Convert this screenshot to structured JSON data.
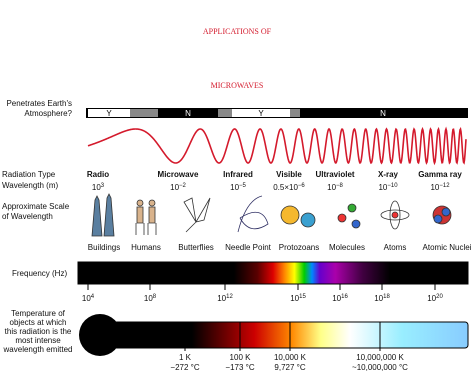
{
  "title": {
    "line1": "APPLICATIONS OF",
    "line2": "MICROWAVES"
  },
  "atmosphere": {
    "label": [
      "Penetrates Earth's",
      "Atmosphere?"
    ],
    "segments": [
      "Y",
      "N",
      "Y",
      "N"
    ]
  },
  "radiation": {
    "type_label": "Radiation Type",
    "wavelength_label": "Wavelength (m)",
    "types": [
      {
        "name": "Radio",
        "base": "10",
        "exp": "3"
      },
      {
        "name": "Microwave",
        "base": "10",
        "exp": "−2"
      },
      {
        "name": "Infrared",
        "base": "10",
        "exp": "−5"
      },
      {
        "name": "Visible",
        "base": "0.5×10",
        "exp": "−6"
      },
      {
        "name": "Ultraviolet",
        "base": "10",
        "exp": "−8"
      },
      {
        "name": "X-ray",
        "base": "10",
        "exp": "−10"
      },
      {
        "name": "Gamma ray",
        "base": "10",
        "exp": "−12"
      }
    ]
  },
  "scale": {
    "label": [
      "Approximate Scale",
      "of Wavelength"
    ],
    "items": [
      "Buildings",
      "Humans",
      "Butterflies",
      "Needle Point",
      "Protozoans",
      "Molecules",
      "Atoms",
      "Atomic Nuclei"
    ]
  },
  "frequency": {
    "label": "Frequency (Hz)",
    "ticks": [
      {
        "base": "10",
        "exp": "4"
      },
      {
        "base": "10",
        "exp": "8"
      },
      {
        "base": "10",
        "exp": "12"
      },
      {
        "base": "10",
        "exp": "15"
      },
      {
        "base": "10",
        "exp": "16"
      },
      {
        "base": "10",
        "exp": "18"
      },
      {
        "base": "10",
        "exp": "20"
      }
    ]
  },
  "temperature": {
    "label": [
      "Temperature of",
      "objects at which",
      "this radiation is the",
      "most intense",
      "wavelength emitted"
    ],
    "marks": [
      {
        "kelvin": "1 K",
        "celsius": "−272 °C"
      },
      {
        "kelvin": "100 K",
        "celsius": "−173 °C"
      },
      {
        "kelvin": "10,000 K",
        "celsius": "9,727 °C"
      },
      {
        "kelvin": "10,000,000 K",
        "celsius": "~10,000,000 °C"
      }
    ]
  }
}
